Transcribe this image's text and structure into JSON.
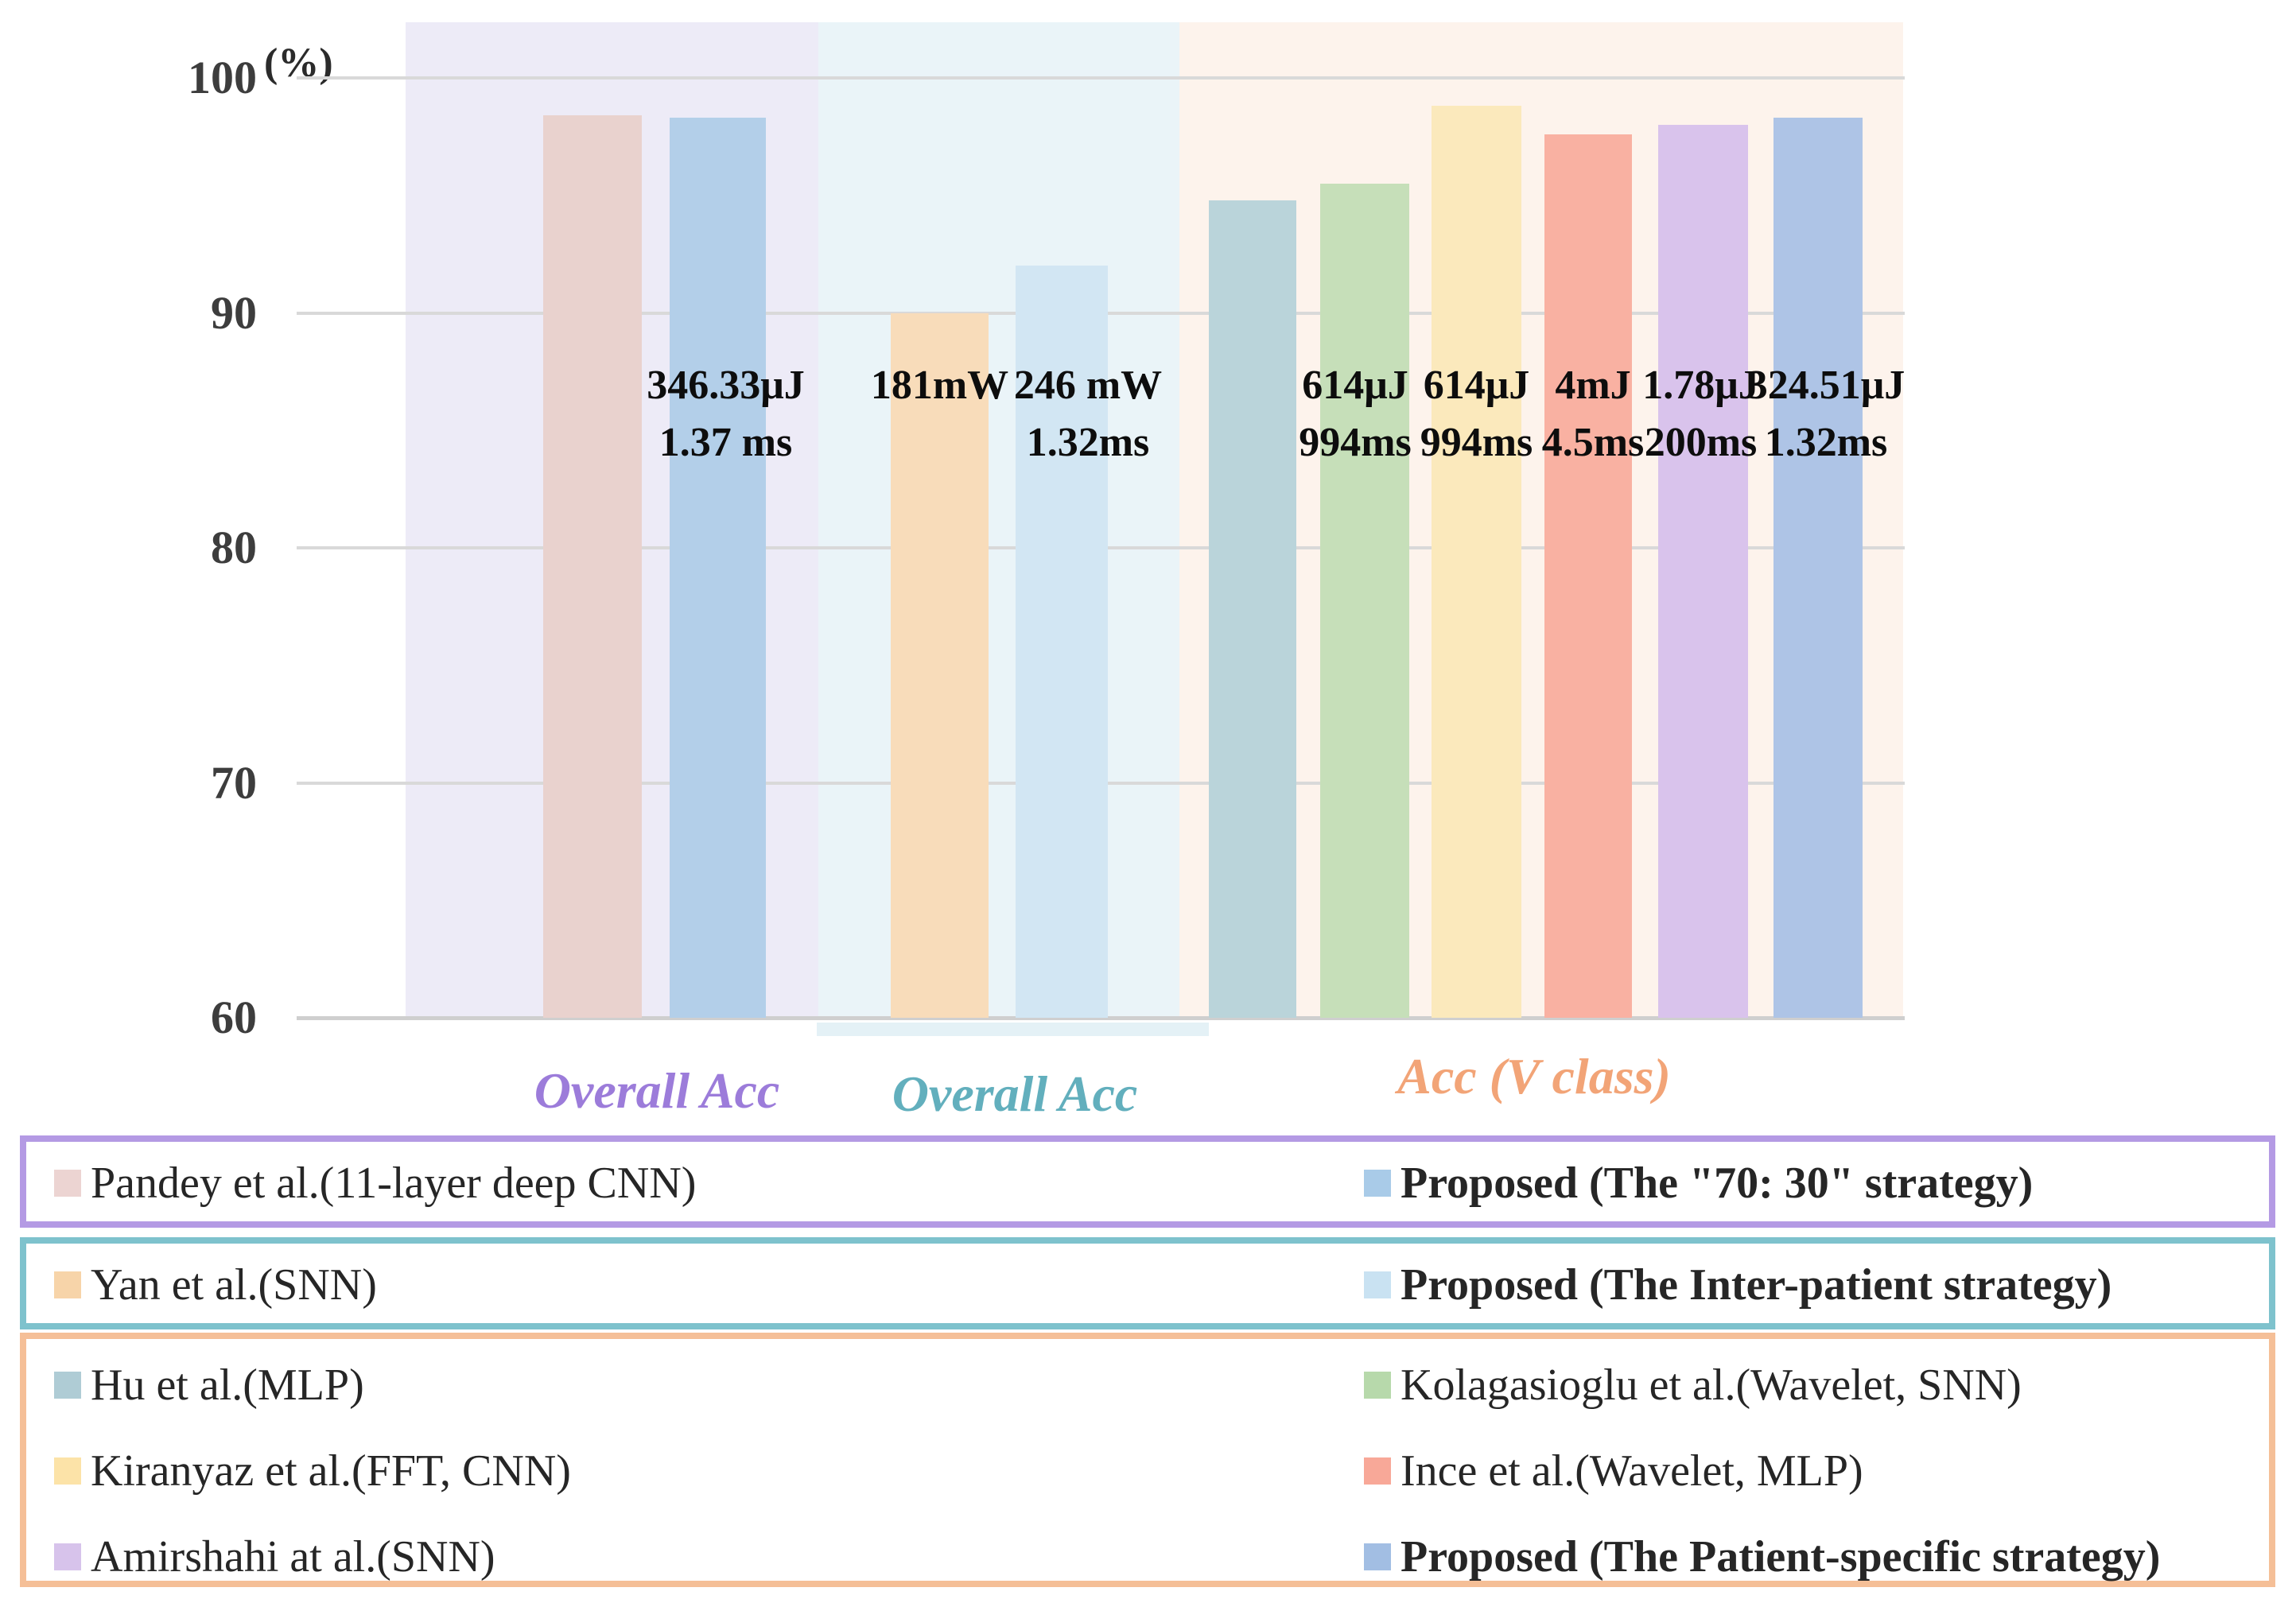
{
  "chart_data": {
    "type": "bar",
    "title": "",
    "unit": "(%)",
    "ylabel": "(%)",
    "ylim": [
      60,
      100
    ],
    "yticks": [
      100,
      90,
      80,
      70,
      60
    ],
    "grid": true,
    "legend_position": "bottom",
    "groups": [
      {
        "label": "Overall Acc",
        "label_color": "#9c7cda",
        "band_color": "#edebf7",
        "bars": [
          {
            "name": "Pandey et al.(11-layer deep CNN)",
            "value": 98.4,
            "color": "#e9d2ce",
            "energy": "",
            "latency": ""
          },
          {
            "name": "Proposed (The \"70: 30\" strategy)",
            "value": 98.3,
            "color": "#b3cfe9",
            "energy": "346.33μJ",
            "latency": "1.37 ms"
          }
        ]
      },
      {
        "label": "Overall Acc",
        "label_color": "#62afbd",
        "band_color": "#eaf4f8",
        "bars": [
          {
            "name": "Yan et al.(SNN)",
            "value": 90.0,
            "color": "#f8dcba",
            "energy": "181mW",
            "latency": ""
          },
          {
            "name": "Proposed (The Inter-patient strategy)",
            "value": 92.0,
            "color": "#d2e6f3",
            "energy": "246 mW",
            "latency": "1.32ms"
          }
        ]
      },
      {
        "label": "Acc (V class)",
        "label_color": "#f2a477",
        "band_color": "#fdf3ec",
        "bars": [
          {
            "name": "Hu et al.(MLP)",
            "value": 94.8,
            "color": "#bad4da",
            "energy": "",
            "latency": ""
          },
          {
            "name": "Kolagasioglu et al.(Wavelet, SNN)",
            "value": 95.5,
            "color": "#c6dfb9",
            "energy": "614μJ",
            "latency": "994ms"
          },
          {
            "name": "Kiranyaz et al.(FFT, CNN)",
            "value": 98.8,
            "color": "#fbe9bc",
            "energy": "614μJ",
            "latency": "994ms"
          },
          {
            "name": "Ince et al.(Wavelet, MLP)",
            "value": 97.6,
            "color": "#f9b1a2",
            "energy": "4mJ",
            "latency": "4.5ms"
          },
          {
            "name": "Amirshahi at al.(SNN)",
            "value": 98.0,
            "color": "#d9c3ec",
            "energy": "1.78μJ",
            "latency": "200ms"
          },
          {
            "name": "Proposed (The Patient-specific strategy)",
            "value": 98.3,
            "color": "#aec4e6",
            "energy": "324.51μJ",
            "latency": "1.32ms"
          }
        ]
      }
    ]
  },
  "legend": {
    "boxes": [
      {
        "border_color": "#b49ae4",
        "items": [
          {
            "label": "Pandey et al.(11-layer deep CNN)",
            "color": "#ecd4d2",
            "bold": false
          },
          {
            "label": "Proposed (The \"70: 30\" strategy)",
            "color": "#a9cbe8",
            "bold": true
          }
        ]
      },
      {
        "border_color": "#7ec2cd",
        "items": [
          {
            "label": "Yan et al.(SNN)",
            "color": "#f7d4a9",
            "bold": false
          },
          {
            "label": "Proposed (The Inter-patient strategy)",
            "color": "#c9e2f2",
            "bold": true
          }
        ]
      },
      {
        "border_color": "#f5bf97",
        "items": [
          {
            "label": "Hu et al.(MLP)",
            "color": "#afccd5",
            "bold": false
          },
          {
            "label": "Kolagasioglu et al.(Wavelet, SNN)",
            "color": "#b7d9ab",
            "bold": false
          },
          {
            "label": "Kiranyaz et al.(FFT, CNN)",
            "color": "#fce3a8",
            "bold": false
          },
          {
            "label": "Ince et al.(Wavelet, MLP)",
            "color": "#f8a898",
            "bold": false
          },
          {
            "label": "Amirshahi at al.(SNN)",
            "color": "#d7c3eb",
            "bold": false
          },
          {
            "label": "Proposed (The Patient-specific strategy)",
            "color": "#a2bee3",
            "bold": true
          }
        ]
      }
    ]
  }
}
